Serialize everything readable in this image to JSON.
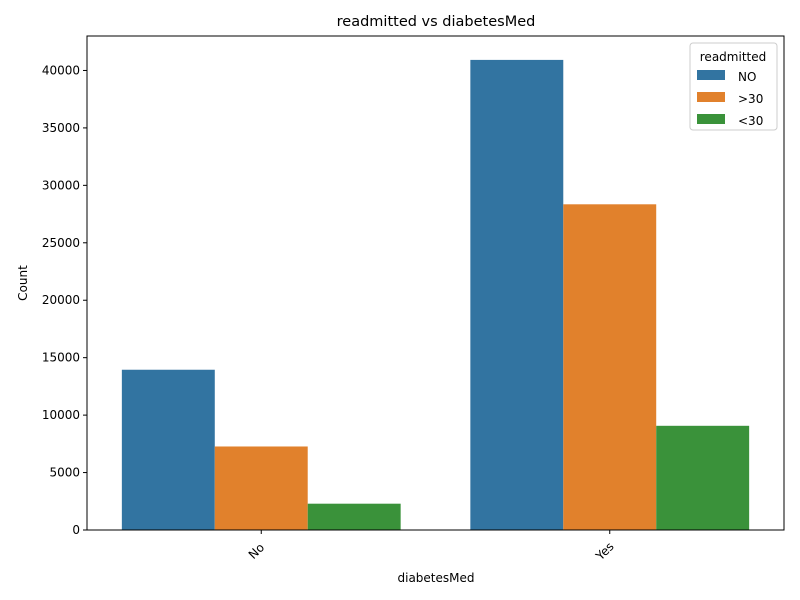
{
  "chart_data": {
    "type": "bar",
    "title": "readmitted vs diabetesMed",
    "xlabel": "diabetesMed",
    "ylabel": "Count",
    "categories": [
      "No",
      "Yes"
    ],
    "series": [
      {
        "name": "NO",
        "color": "#3274a1",
        "values": [
          13950,
          40920
        ]
      },
      {
        "name": ">30",
        "color": "#e1812c",
        "values": [
          7270,
          28350
        ]
      },
      {
        "name": "<30",
        "color": "#3a923a",
        "values": [
          2290,
          9070
        ]
      }
    ],
    "ylim": [
      0,
      43000
    ],
    "yticks": [
      0,
      5000,
      10000,
      15000,
      20000,
      25000,
      30000,
      35000,
      40000
    ],
    "grid": false,
    "legend": {
      "title": "readmitted",
      "placement": "top-right"
    }
  }
}
